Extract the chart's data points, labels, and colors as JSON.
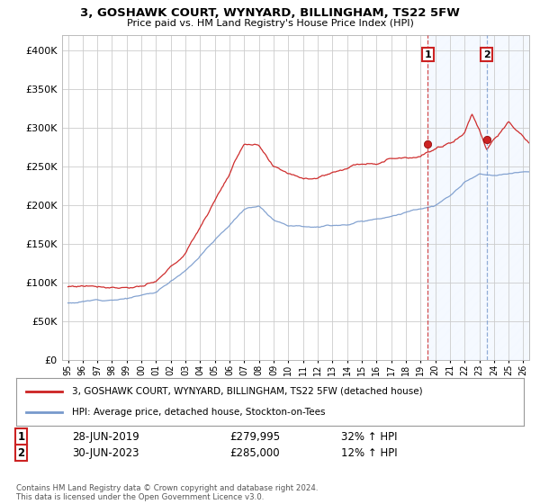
{
  "title": "3, GOSHAWK COURT, WYNYARD, BILLINGHAM, TS22 5FW",
  "subtitle": "Price paid vs. HM Land Registry's House Price Index (HPI)",
  "legend_line1": "3, GOSHAWK COURT, WYNYARD, BILLINGHAM, TS22 5FW (detached house)",
  "legend_line2": "HPI: Average price, detached house, Stockton-on-Tees",
  "annotation1_label": "1",
  "annotation1_date": "28-JUN-2019",
  "annotation1_price": "£279,995",
  "annotation1_hpi": "32% ↑ HPI",
  "annotation2_label": "2",
  "annotation2_date": "30-JUN-2023",
  "annotation2_price": "£285,000",
  "annotation2_hpi": "12% ↑ HPI",
  "footnote": "Contains HM Land Registry data © Crown copyright and database right 2024.\nThis data is licensed under the Open Government Licence v3.0.",
  "red_color": "#cc2222",
  "blue_color": "#7799cc",
  "sale2_vline_color": "#7799cc",
  "background_color": "#ffffff",
  "grid_color": "#cccccc",
  "shaded_region_color": "#ddeeff",
  "ylim": [
    0,
    420000
  ],
  "yticks": [
    0,
    50000,
    100000,
    150000,
    200000,
    250000,
    300000,
    350000,
    400000
  ],
  "xlim_start": 1994.6,
  "xlim_end": 2026.4,
  "sale1_year": 2019.5,
  "sale1_value": 279995,
  "sale2_year": 2023.5,
  "sale2_value": 285000,
  "hpi_seed": 12,
  "red_seed": 77
}
